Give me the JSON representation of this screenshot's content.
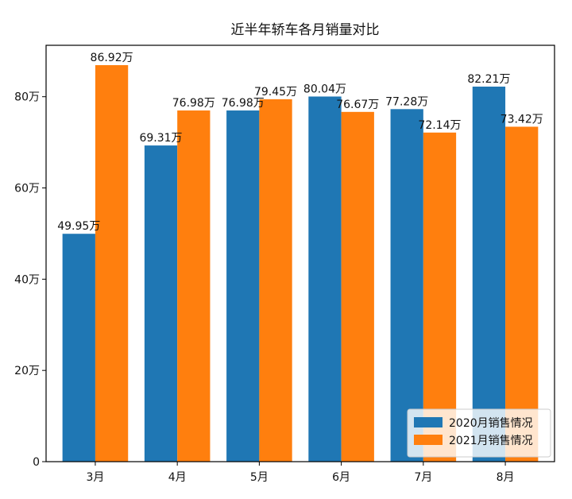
{
  "chart_data": {
    "type": "bar",
    "title": "近半年轿车各月销量对比",
    "xlabel": "",
    "ylabel": "",
    "categories": [
      "3月",
      "4月",
      "5月",
      "6月",
      "7月",
      "8月"
    ],
    "series": [
      {
        "name": "2020月销售情况",
        "color": "#1f77b4",
        "values": [
          49.95,
          69.31,
          76.98,
          80.04,
          77.28,
          82.21
        ],
        "labels": [
          "49.95万",
          "69.31万",
          "76.98万",
          "80.04万",
          "77.28万",
          "82.21万"
        ]
      },
      {
        "name": "2021月销售情况",
        "color": "#ff7f0e",
        "values": [
          86.92,
          76.98,
          79.45,
          76.67,
          72.14,
          73.42
        ],
        "labels": [
          "86.92万",
          "76.98万",
          "79.45万",
          "76.67万",
          "72.14万",
          "73.42万"
        ]
      }
    ],
    "ylim": [
      0,
      91.27
    ],
    "yticks": [
      0,
      20,
      40,
      60,
      80
    ],
    "ytick_labels": [
      "0",
      "20万",
      "40万",
      "60万",
      "80万"
    ],
    "grid": false,
    "legend_position": "lower-right"
  }
}
